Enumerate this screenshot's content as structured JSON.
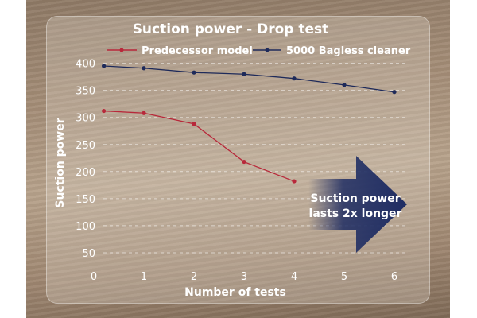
{
  "chart_data": {
    "type": "line",
    "title": "Suction power - Drop test",
    "xlabel": "Number of tests",
    "ylabel": "Suction power",
    "x_ticks": [
      "0",
      "1",
      "2",
      "3",
      "4",
      "5",
      "6"
    ],
    "y_ticks": [
      "50",
      "100",
      "150",
      "200",
      "250",
      "300",
      "350",
      "400"
    ],
    "xlim": [
      0,
      6
    ],
    "ylim": [
      0,
      420
    ],
    "grid": "dashed horizontal",
    "legend": "top",
    "series": [
      {
        "name": "Predecessor model",
        "color": "#b8283a",
        "x": [
          0.2,
          1,
          2,
          3,
          4
        ],
        "values": [
          312,
          308,
          288,
          218,
          182
        ]
      },
      {
        "name": "5000 Bagless cleaner",
        "color": "#1e2a5a",
        "x": [
          0.2,
          1,
          2,
          3,
          4,
          5,
          6
        ],
        "values": [
          395,
          391,
          383,
          380,
          372,
          360,
          347
        ]
      }
    ],
    "annotation": {
      "line1": "Suction power",
      "line2": "lasts 2x longer",
      "arrow_color": "#1f2d63"
    }
  }
}
